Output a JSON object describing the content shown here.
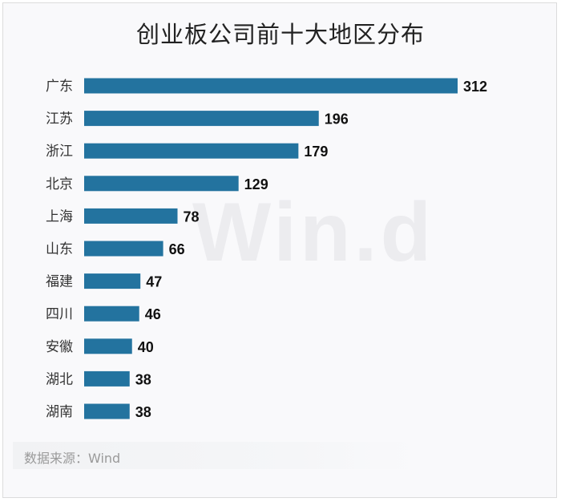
{
  "chart_data": {
    "type": "bar",
    "orientation": "horizontal",
    "title": "创业板公司前十大地区分布",
    "categories": [
      "广东",
      "江苏",
      "浙江",
      "北京",
      "上海",
      "山东",
      "福建",
      "四川",
      "安徽",
      "湖北",
      "湖南"
    ],
    "values": [
      312,
      196,
      179,
      129,
      78,
      66,
      47,
      46,
      40,
      38,
      38
    ],
    "bar_color": "#23739f",
    "xlim": [
      0,
      312
    ],
    "grid": false,
    "legend": "none"
  },
  "watermark": "Win.d",
  "source": "数据来源：Wind"
}
